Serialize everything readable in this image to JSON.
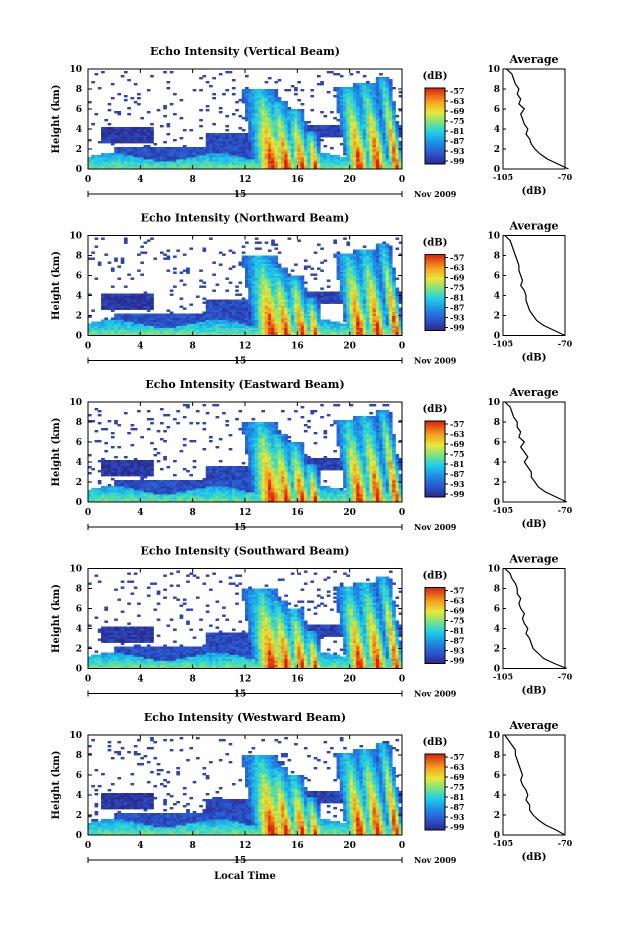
{
  "figure": {
    "xlabel_bottom": "Local Time",
    "date_label": "Nov 2009",
    "day_label": "15",
    "colorbar_unit": "(dB)",
    "average_title": "Average",
    "average_xlabel": "(dB)"
  },
  "chart_data": [
    {
      "type": "heatmap",
      "title": "Echo Intensity (Vertical Beam)",
      "ylabel": "Height (km)",
      "xlim": [
        0,
        24
      ],
      "ylim": [
        0,
        10
      ],
      "x_ticks": [
        "0",
        "4",
        "8",
        "12",
        "16",
        "20",
        "0"
      ],
      "y_ticks": [
        "0",
        "2",
        "4",
        "6",
        "8",
        "10"
      ],
      "colorbar": {
        "label": "(dB)",
        "ticks": [
          "-57",
          "-63",
          "-69",
          "-75",
          "-81",
          "-87",
          "-93",
          "-99"
        ],
        "range": [
          -99,
          -57
        ]
      },
      "average": {
        "title": "Average",
        "xlabel": "(dB)",
        "x_ticks": [
          "-105",
          "-70"
        ],
        "xlim": [
          -105,
          -70
        ],
        "profile_db": [
          -68,
          -74,
          -80,
          -84,
          -87,
          -89,
          -90,
          -92,
          -91,
          -93,
          -94,
          -95,
          -93,
          -96,
          -95,
          -97,
          -96,
          -98,
          -99,
          -100,
          -103
        ]
      }
    },
    {
      "type": "heatmap",
      "title": "Echo Intensity (Northward Beam)",
      "ylabel": "Height (km)",
      "xlim": [
        0,
        24
      ],
      "ylim": [
        0,
        10
      ],
      "x_ticks": [
        "0",
        "4",
        "8",
        "12",
        "16",
        "20",
        "0"
      ],
      "y_ticks": [
        "0",
        "2",
        "4",
        "6",
        "8",
        "10"
      ],
      "colorbar": {
        "label": "(dB)",
        "ticks": [
          "-57",
          "-63",
          "-69",
          "-75",
          "-81",
          "-87",
          "-93",
          "-99"
        ],
        "range": [
          -99,
          -57
        ]
      },
      "average": {
        "title": "Average",
        "xlabel": "(dB)",
        "x_ticks": [
          "-105",
          "-70"
        ],
        "xlim": [
          -105,
          -70
        ],
        "profile_db": [
          -70,
          -76,
          -82,
          -86,
          -88,
          -90,
          -91,
          -92,
          -92,
          -93,
          -95,
          -94,
          -95,
          -96,
          -96,
          -97,
          -98,
          -99,
          -100,
          -101,
          -104
        ]
      }
    },
    {
      "type": "heatmap",
      "title": "Echo Intensity (Eastward Beam)",
      "ylabel": "Height (km)",
      "xlim": [
        0,
        24
      ],
      "ylim": [
        0,
        10
      ],
      "x_ticks": [
        "0",
        "4",
        "8",
        "12",
        "16",
        "20",
        "0"
      ],
      "y_ticks": [
        "0",
        "2",
        "4",
        "6",
        "8",
        "10"
      ],
      "colorbar": {
        "label": "(dB)",
        "ticks": [
          "-57",
          "-63",
          "-69",
          "-75",
          "-81",
          "-87",
          "-93",
          "-99"
        ],
        "range": [
          -99,
          -57
        ]
      },
      "average": {
        "title": "Average",
        "xlabel": "(dB)",
        "x_ticks": [
          "-105",
          "-70"
        ],
        "xlim": [
          -105,
          -70
        ],
        "profile_db": [
          -69,
          -75,
          -81,
          -85,
          -87,
          -89,
          -89,
          -91,
          -93,
          -91,
          -93,
          -95,
          -93,
          -96,
          -95,
          -97,
          -97,
          -99,
          -100,
          -101,
          -104
        ]
      }
    },
    {
      "type": "heatmap",
      "title": "Echo Intensity (Southward Beam)",
      "ylabel": "Height (km)",
      "xlim": [
        0,
        24
      ],
      "ylim": [
        0,
        10
      ],
      "x_ticks": [
        "0",
        "4",
        "8",
        "12",
        "16",
        "20",
        "0"
      ],
      "y_ticks": [
        "0",
        "2",
        "4",
        "6",
        "8",
        "10"
      ],
      "colorbar": {
        "label": "(dB)",
        "ticks": [
          "-57",
          "-63",
          "-69",
          "-75",
          "-81",
          "-87",
          "-93",
          "-99"
        ],
        "range": [
          -99,
          -57
        ]
      },
      "average": {
        "title": "Average",
        "xlabel": "(dB)",
        "x_ticks": [
          "-105",
          "-70"
        ],
        "xlim": [
          -105,
          -70
        ],
        "profile_db": [
          -69,
          -76,
          -82,
          -85,
          -88,
          -89,
          -90,
          -92,
          -91,
          -93,
          -94,
          -93,
          -95,
          -96,
          -95,
          -97,
          -97,
          -98,
          -100,
          -101,
          -104
        ]
      }
    },
    {
      "type": "heatmap",
      "title": "Echo Intensity (Westward Beam)",
      "ylabel": "Height (km)",
      "xlim": [
        0,
        24
      ],
      "ylim": [
        0,
        10
      ],
      "x_ticks": [
        "0",
        "4",
        "8",
        "12",
        "16",
        "20",
        "0"
      ],
      "y_ticks": [
        "0",
        "2",
        "4",
        "6",
        "8",
        "10"
      ],
      "colorbar": {
        "label": "(dB)",
        "ticks": [
          "-57",
          "-63",
          "-69",
          "-75",
          "-81",
          "-87",
          "-93",
          "-99"
        ],
        "range": [
          -99,
          -57
        ]
      },
      "average": {
        "title": "Average",
        "xlabel": "(dB)",
        "x_ticks": [
          "-105",
          "-70"
        ],
        "xlim": [
          -105,
          -70
        ],
        "profile_db": [
          -70,
          -75,
          -81,
          -85,
          -88,
          -90,
          -90,
          -92,
          -91,
          -92,
          -94,
          -95,
          -94,
          -95,
          -96,
          -97,
          -98,
          -98,
          -100,
          -102,
          -104
        ]
      }
    }
  ]
}
